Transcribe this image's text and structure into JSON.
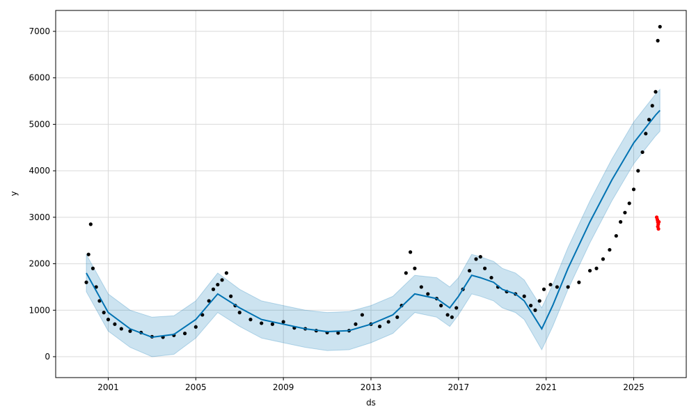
{
  "chart_data": {
    "type": "scatter",
    "title": "",
    "xlabel": "ds",
    "ylabel": "y",
    "xlim": [
      1998.6,
      2027.4
    ],
    "ylim": [
      -450,
      7450
    ],
    "x_ticks": [
      2001,
      2005,
      2009,
      2013,
      2017,
      2021,
      2025
    ],
    "x_tick_labels": [
      "2001",
      "2005",
      "2009",
      "2013",
      "2017",
      "2021",
      "2025"
    ],
    "y_ticks": [
      0,
      1000,
      2000,
      3000,
      4000,
      5000,
      6000,
      7000
    ],
    "y_tick_labels": [
      "0",
      "1000",
      "2000",
      "3000",
      "4000",
      "5000",
      "6000",
      "7000"
    ],
    "grid": true,
    "colors": {
      "observed": "#000000",
      "forecast": "#0072B2",
      "interval": "#0072B2",
      "test_points": "#ff0000",
      "grid": "#d9d9d9"
    },
    "series": [
      {
        "kind": "observed-points",
        "x": [
          2000.0,
          2000.1,
          2000.2,
          2000.3,
          2000.45,
          2000.6,
          2000.8,
          2001.0,
          2001.3,
          2001.6,
          2002.0,
          2002.5,
          2003.0,
          2003.5,
          2004.0,
          2004.5,
          2005.0,
          2005.3,
          2005.6,
          2005.8,
          2006.0,
          2006.2,
          2006.4,
          2006.6,
          2006.8,
          2007.0,
          2007.5,
          2008.0,
          2008.5,
          2009.0,
          2009.5,
          2010.0,
          2010.5,
          2011.0,
          2011.5,
          2012.0,
          2012.3,
          2012.6,
          2013.0,
          2013.4,
          2013.8,
          2014.2,
          2014.4,
          2014.6,
          2014.8,
          2015.0,
          2015.3,
          2015.6,
          2016.0,
          2016.2,
          2016.5,
          2016.7,
          2016.9,
          2017.2,
          2017.5,
          2017.8,
          2018.0,
          2018.2,
          2018.5,
          2018.8,
          2019.2,
          2019.6,
          2020.0,
          2020.3,
          2020.5,
          2020.7,
          2020.9,
          2021.2,
          2021.5,
          2022.0,
          2022.5,
          2023.0,
          2023.3,
          2023.6,
          2023.9,
          2024.2,
          2024.4,
          2024.6,
          2024.8,
          2025.0,
          2025.2,
          2025.4,
          2025.55,
          2025.7,
          2025.85,
          2026.0,
          2026.1,
          2026.2
        ],
        "values": [
          1600,
          2200,
          2850,
          1900,
          1500,
          1200,
          950,
          800,
          700,
          600,
          550,
          520,
          430,
          420,
          460,
          500,
          640,
          900,
          1200,
          1450,
          1550,
          1650,
          1800,
          1300,
          1100,
          950,
          800,
          720,
          700,
          750,
          620,
          600,
          560,
          520,
          510,
          560,
          700,
          900,
          700,
          650,
          750,
          850,
          1100,
          1800,
          2250,
          1900,
          1500,
          1350,
          1250,
          1100,
          900,
          850,
          1050,
          1450,
          1850,
          2100,
          2150,
          1900,
          1700,
          1500,
          1400,
          1350,
          1300,
          1100,
          1000,
          1200,
          1450,
          1550,
          1500,
          1500,
          1600,
          1850,
          1900,
          2100,
          2300,
          2600,
          2900,
          3100,
          3300,
          3600,
          4000,
          4400,
          4800,
          5100,
          5400,
          5700,
          6800,
          7100
        ]
      },
      {
        "kind": "forecast-line",
        "x": [
          2000.0,
          2001.0,
          2002.0,
          2003.0,
          2004.0,
          2005.0,
          2006.0,
          2007.0,
          2008.0,
          2009.0,
          2010.0,
          2011.0,
          2012.0,
          2013.0,
          2014.0,
          2015.0,
          2016.0,
          2016.6,
          2017.0,
          2017.6,
          2018.0,
          2018.6,
          2019.0,
          2019.6,
          2020.0,
          2020.8,
          2021.3,
          2022.0,
          2023.0,
          2024.0,
          2025.0,
          2025.5,
          2026.0,
          2026.2
        ],
        "values": [
          1800,
          950,
          600,
          420,
          480,
          800,
          1350,
          1050,
          800,
          700,
          600,
          540,
          560,
          700,
          900,
          1350,
          1250,
          1050,
          1300,
          1750,
          1700,
          1600,
          1450,
          1350,
          1200,
          600,
          1100,
          1900,
          2900,
          3800,
          4600,
          4900,
          5200,
          5300
        ]
      },
      {
        "kind": "uncertainty-interval",
        "x": [
          2000.0,
          2001.0,
          2002.0,
          2003.0,
          2004.0,
          2005.0,
          2006.0,
          2007.0,
          2008.0,
          2009.0,
          2010.0,
          2011.0,
          2012.0,
          2013.0,
          2014.0,
          2015.0,
          2016.0,
          2016.6,
          2017.0,
          2017.6,
          2018.0,
          2018.6,
          2019.0,
          2019.6,
          2020.0,
          2020.8,
          2021.3,
          2022.0,
          2023.0,
          2024.0,
          2025.0,
          2025.5,
          2026.0,
          2026.2
        ],
        "upper": [
          2200,
          1350,
          1000,
          850,
          880,
          1200,
          1800,
          1450,
          1200,
          1100,
          1000,
          950,
          970,
          1100,
          1300,
          1750,
          1700,
          1500,
          1700,
          2200,
          2150,
          2050,
          1900,
          1800,
          1650,
          1050,
          1550,
          2350,
          3350,
          4250,
          5050,
          5350,
          5650,
          5750
        ],
        "lower": [
          1400,
          550,
          200,
          0,
          50,
          400,
          950,
          650,
          400,
          300,
          200,
          130,
          150,
          300,
          500,
          950,
          850,
          650,
          900,
          1350,
          1300,
          1200,
          1050,
          950,
          800,
          150,
          650,
          1450,
          2450,
          3350,
          4150,
          4450,
          4750,
          4850
        ]
      },
      {
        "kind": "test-points",
        "x": [
          2026.05,
          2026.08,
          2026.1,
          2026.12,
          2026.15,
          2026.1,
          2026.13
        ],
        "values": [
          3000,
          2950,
          2900,
          2850,
          2900,
          2800,
          2750
        ]
      }
    ]
  }
}
